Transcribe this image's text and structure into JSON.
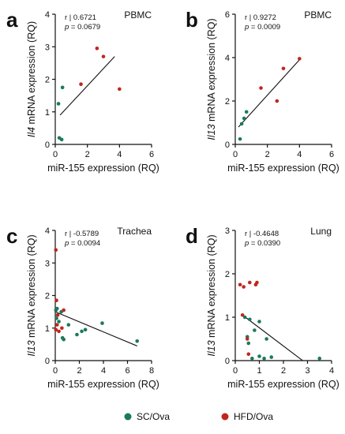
{
  "colors": {
    "sc": "#1a7a5a",
    "hfd": "#c0261f",
    "axis": "#111111"
  },
  "legend": [
    {
      "label": "SC/Ova",
      "color": "#1a7a5a"
    },
    {
      "label": "HFD/Ova",
      "color": "#c0261f"
    }
  ],
  "chart_data": [
    {
      "type": "scatter",
      "letter": "a",
      "tissue": "PBMC",
      "stats": {
        "r_prefix": "r | ",
        "r": "0.6721",
        "p_prefix": "p",
        "p": " = 0.0679"
      },
      "xlabel": "miR-155 expression (RQ)",
      "ylabel": {
        "gene": "Il4",
        "rest": " mRNA expression (RQ)"
      },
      "xlim": [
        0,
        6
      ],
      "ylim": [
        0,
        4
      ],
      "xticks": [
        "0",
        "2",
        "4",
        "6"
      ],
      "yticks": [
        "0",
        "1",
        "2",
        "3",
        "4"
      ],
      "series": [
        {
          "group": "sc",
          "points": [
            [
              0.2,
              1.25
            ],
            [
              0.25,
              0.2
            ],
            [
              0.4,
              0.15
            ],
            [
              0.45,
              1.75
            ]
          ]
        },
        {
          "group": "hfd",
          "points": [
            [
              1.6,
              1.85
            ],
            [
              2.6,
              2.95
            ],
            [
              3.0,
              2.7
            ],
            [
              4.0,
              1.7
            ]
          ]
        }
      ],
      "fit": [
        [
          0.3,
          0.9
        ],
        [
          3.7,
          2.7
        ]
      ]
    },
    {
      "type": "scatter",
      "letter": "b",
      "tissue": "PBMC",
      "stats": {
        "r_prefix": "r | ",
        "r": "0.9272",
        "p_prefix": "p",
        "p": " = 0.0009"
      },
      "xlabel": "miR-155 expression (RQ)",
      "ylabel": {
        "gene": "Il13",
        "rest": " mRNA expression (RQ)"
      },
      "xlim": [
        0,
        6
      ],
      "ylim": [
        0,
        6
      ],
      "xticks": [
        "0",
        "2",
        "4",
        "6"
      ],
      "yticks": [
        "0",
        "2",
        "4",
        "6"
      ],
      "series": [
        {
          "group": "sc",
          "points": [
            [
              0.3,
              0.25
            ],
            [
              0.4,
              0.95
            ],
            [
              0.55,
              1.2
            ],
            [
              0.7,
              1.5
            ]
          ]
        },
        {
          "group": "hfd",
          "points": [
            [
              1.6,
              2.6
            ],
            [
              2.6,
              2.0
            ],
            [
              3.0,
              3.5
            ],
            [
              4.0,
              3.95
            ]
          ]
        }
      ],
      "fit": [
        [
          0.2,
          0.8
        ],
        [
          4.0,
          3.9
        ]
      ]
    },
    {
      "type": "scatter",
      "letter": "c",
      "tissue": "Trachea",
      "stats": {
        "r_prefix": "r | ",
        "r": "-0.5789",
        "p_prefix": "p",
        "p": " = 0.0094"
      },
      "xlabel": "miR-155 expression (RQ)",
      "ylabel": {
        "gene": "Il13",
        "rest": " mRNA expression (RQ)"
      },
      "xlim": [
        0,
        8
      ],
      "ylim": [
        0,
        4
      ],
      "xticks": [
        "0",
        "2",
        "4",
        "6",
        "8"
      ],
      "yticks": [
        "0",
        "1",
        "2",
        "3",
        "4"
      ],
      "series": [
        {
          "group": "sc",
          "points": [
            [
              0.05,
              1.55
            ],
            [
              0.1,
              1.3
            ],
            [
              0.15,
              1.6
            ],
            [
              0.3,
              1.2
            ],
            [
              0.5,
              1.5
            ],
            [
              0.6,
              0.7
            ],
            [
              0.7,
              0.65
            ],
            [
              1.1,
              1.1
            ],
            [
              1.8,
              0.8
            ],
            [
              2.2,
              0.9
            ],
            [
              2.5,
              0.95
            ],
            [
              3.9,
              1.15
            ],
            [
              6.8,
              0.6
            ]
          ]
        },
        {
          "group": "hfd",
          "points": [
            [
              0.05,
              3.4
            ],
            [
              0.1,
              1.85
            ],
            [
              0.2,
              1.4
            ],
            [
              0.3,
              0.9
            ],
            [
              0.55,
              1.0
            ],
            [
              0.7,
              1.55
            ],
            [
              0.05,
              0.95
            ],
            [
              0.15,
              1.1
            ]
          ]
        }
      ],
      "fit": [
        [
          0.0,
          1.5
        ],
        [
          6.8,
          0.45
        ]
      ]
    },
    {
      "type": "scatter",
      "letter": "d",
      "tissue": "Lung",
      "stats": {
        "r_prefix": "r | ",
        "r": "-0.4648",
        "p_prefix": "p",
        "p": " = 0.0390"
      },
      "xlabel": "miR-155 expression (RQ)",
      "ylabel": {
        "gene": "Il13",
        "rest": " mRNA expression (RQ)"
      },
      "xlim": [
        0,
        4
      ],
      "ylim": [
        0,
        3
      ],
      "xticks": [
        "0",
        "1",
        "2",
        "3",
        "4"
      ],
      "yticks": [
        "0",
        "1",
        "2",
        "3"
      ],
      "series": [
        {
          "group": "sc",
          "points": [
            [
              0.4,
              1.0
            ],
            [
              0.5,
              0.55
            ],
            [
              0.55,
              0.4
            ],
            [
              0.6,
              0.95
            ],
            [
              0.7,
              0.05
            ],
            [
              0.8,
              0.7
            ],
            [
              1.0,
              0.9
            ],
            [
              1.0,
              0.1
            ],
            [
              1.2,
              0.05
            ],
            [
              1.3,
              0.5
            ],
            [
              1.5,
              0.08
            ],
            [
              3.5,
              0.05
            ]
          ]
        },
        {
          "group": "hfd",
          "points": [
            [
              0.2,
              1.75
            ],
            [
              0.3,
              1.05
            ],
            [
              0.35,
              1.7
            ],
            [
              0.5,
              0.5
            ],
            [
              0.55,
              0.15
            ],
            [
              0.6,
              1.8
            ],
            [
              0.85,
              1.75
            ],
            [
              0.9,
              1.8
            ]
          ]
        }
      ],
      "fit": [
        [
          0.3,
          1.05
        ],
        [
          2.8,
          0.0
        ]
      ]
    }
  ]
}
